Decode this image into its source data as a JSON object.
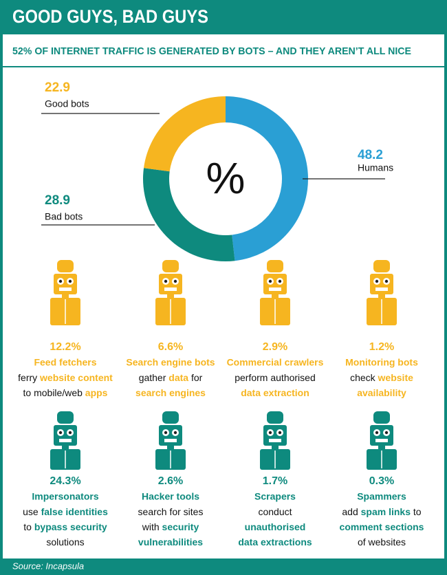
{
  "header": {
    "title": "GOOD GUYS, BAD GUYS",
    "subtitle": "52% OF INTERNET TRAFFIC IS GENERATED BY BOTS – AND THEY AREN’T ALL NICE"
  },
  "chart_data": {
    "type": "donut",
    "center_label": "%",
    "categories": [
      "Humans",
      "Bad bots",
      "Good bots"
    ],
    "values": [
      48.2,
      28.9,
      22.9
    ],
    "colors": [
      "#2a9fd4",
      "#0e8a7e",
      "#f6b520"
    ]
  },
  "good_bots": {
    "color": "#f6b520",
    "items": [
      {
        "share": "12.2%",
        "name": "Feed fetchers",
        "lines": [
          [
            {
              "text": "ferry ",
              "highlight": false
            },
            {
              "text": "website content",
              "highlight": true
            }
          ],
          [
            {
              "text": "to mobile/web ",
              "highlight": false
            },
            {
              "text": "apps",
              "highlight": true
            }
          ]
        ]
      },
      {
        "share": "6.6%",
        "name": "Search engine bots",
        "lines": [
          [
            {
              "text": "gather ",
              "highlight": false
            },
            {
              "text": "data",
              "highlight": true
            },
            {
              "text": " for",
              "highlight": false
            }
          ],
          [
            {
              "text": "search engines",
              "highlight": true
            }
          ]
        ]
      },
      {
        "share": "2.9%",
        "name": "Commercial crawlers",
        "lines": [
          [
            {
              "text": "perform authorised",
              "highlight": false
            }
          ],
          [
            {
              "text": "data extraction",
              "highlight": true
            }
          ]
        ]
      },
      {
        "share": "1.2%",
        "name": "Monitoring bots",
        "lines": [
          [
            {
              "text": "check ",
              "highlight": false
            },
            {
              "text": "website",
              "highlight": true
            }
          ],
          [
            {
              "text": "availability",
              "highlight": true
            }
          ]
        ]
      }
    ]
  },
  "bad_bots": {
    "color": "#0e8a7e",
    "items": [
      {
        "share": "24.3%",
        "name": "Impersonators",
        "lines": [
          [
            {
              "text": "use ",
              "highlight": false
            },
            {
              "text": "false identities",
              "highlight": true
            }
          ],
          [
            {
              "text": "to ",
              "highlight": false
            },
            {
              "text": "bypass security",
              "highlight": true
            }
          ],
          [
            {
              "text": "solutions",
              "highlight": false
            }
          ]
        ]
      },
      {
        "share": "2.6%",
        "name": "Hacker tools",
        "lines": [
          [
            {
              "text": "search for sites",
              "highlight": false
            }
          ],
          [
            {
              "text": "with ",
              "highlight": false
            },
            {
              "text": "security",
              "highlight": true
            }
          ],
          [
            {
              "text": "vulnerabilities",
              "highlight": true
            }
          ]
        ]
      },
      {
        "share": "1.7%",
        "name": "Scrapers",
        "lines": [
          [
            {
              "text": "conduct",
              "highlight": false
            }
          ],
          [
            {
              "text": "unauthorised",
              "highlight": true
            }
          ],
          [
            {
              "text": "data extractions",
              "highlight": true
            }
          ]
        ]
      },
      {
        "share": "0.3%",
        "name": "Spammers",
        "lines": [
          [
            {
              "text": "add ",
              "highlight": false
            },
            {
              "text": "spam links",
              "highlight": true
            },
            {
              "text": " to",
              "highlight": false
            }
          ],
          [
            {
              "text": "comment sections",
              "highlight": true
            }
          ],
          [
            {
              "text": "of websites",
              "highlight": false
            }
          ]
        ]
      }
    ]
  },
  "footer": {
    "source": "Source: Incapsula"
  }
}
